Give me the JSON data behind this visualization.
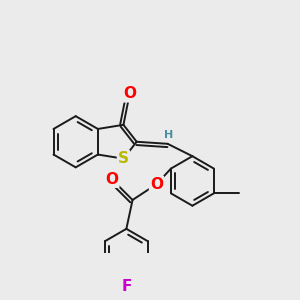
{
  "bg_color": "#ebebeb",
  "bond_color": "#1a1a1a",
  "bond_width": 1.4,
  "atom_colors": {
    "O": "#ff0000",
    "S": "#b8b800",
    "F": "#cc00cc",
    "H": "#4a8fa0",
    "C": "#1a1a1a"
  },
  "font_size": 9
}
